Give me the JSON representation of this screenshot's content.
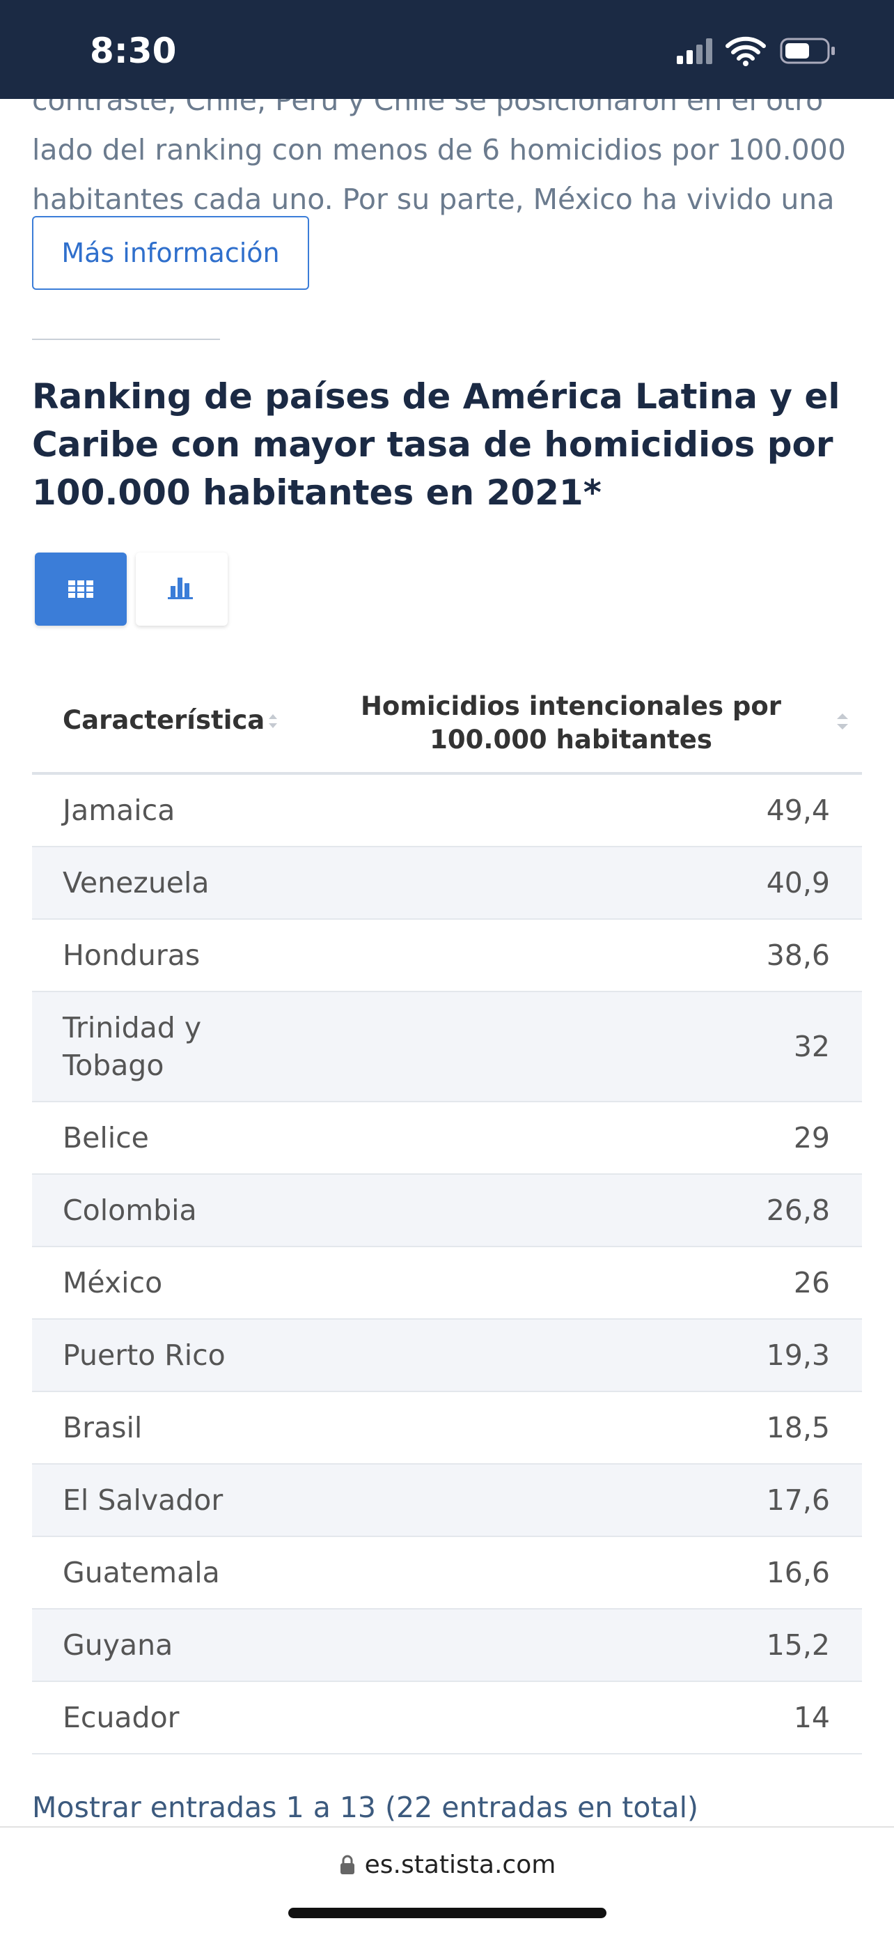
{
  "status_bar": {
    "time": "8:30"
  },
  "article": {
    "text_lines": [
      "contraste, Chile, Perú y Chile se posicionaron en el otro",
      "lado del ranking con menos de 6 homicidios por 100.000",
      "habitantes cada uno. Por su parte, México ha vivido una"
    ],
    "button": "Más información"
  },
  "chart_section": {
    "title": "Ranking de países de América Latina y el Caribe con mayor tasa de homicidios por 100.000 habitantes en 2021*"
  },
  "table": {
    "headers": [
      "Característica",
      "Homicidios intencionales por 100.000 habitantes"
    ],
    "rows": [
      [
        "Jamaica",
        "49,4"
      ],
      [
        "Venezuela",
        "40,9"
      ],
      [
        "Honduras",
        "38,6"
      ],
      [
        "Trinidad y Tobago",
        "32"
      ],
      [
        "Belice",
        "29"
      ],
      [
        "Colombia",
        "26,8"
      ],
      [
        "México",
        "26"
      ],
      [
        "Puerto Rico",
        "19,3"
      ],
      [
        "Brasil",
        "18,5"
      ],
      [
        "El Salvador",
        "17,6"
      ],
      [
        "Guatemala",
        "16,6"
      ],
      [
        "Guyana",
        "15,2"
      ],
      [
        "Ecuador",
        "14"
      ]
    ]
  },
  "footer": {
    "entries_text": "Mostrar entradas 1 a 13 (22 entradas en total)"
  },
  "browser": {
    "url": "es.statista.com"
  }
}
